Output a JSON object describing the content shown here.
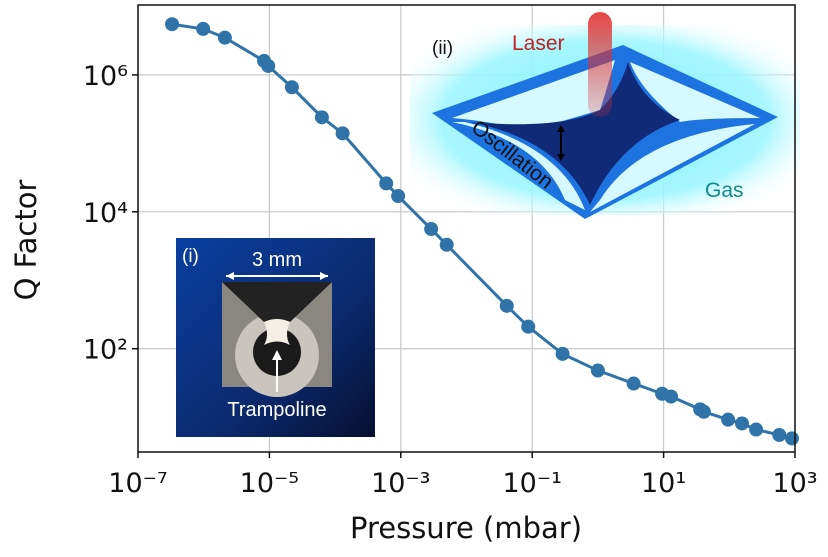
{
  "chart_data": {
    "type": "line",
    "xlabel": "Pressure (mbar)",
    "ylabel": "Q Factor",
    "xscale": "log",
    "yscale": "log",
    "grid": true,
    "xlim": [
      1e-07,
      1000
    ],
    "ylim": [
      3.1,
      10500000
    ],
    "xticks": [
      {
        "value": 1e-07,
        "label": "10⁻⁷"
      },
      {
        "value": 1e-05,
        "label": "10⁻⁵"
      },
      {
        "value": 0.001,
        "label": "10⁻³"
      },
      {
        "value": 0.1,
        "label": "10⁻¹"
      },
      {
        "value": 10,
        "label": "10¹"
      },
      {
        "value": 1000,
        "label": "10³"
      }
    ],
    "yticks": [
      {
        "value": 100,
        "label": "10²"
      },
      {
        "value": 10000,
        "label": "10⁴"
      },
      {
        "value": 1000000,
        "label": "10⁶"
      }
    ],
    "series": [
      {
        "color": "#2f73a8",
        "x": [
          3.3e-07,
          9.8e-07,
          2.1e-06,
          8.3e-06,
          9.6e-06,
          2.2e-05,
          6.3e-05,
          0.00013,
          0.0006,
          0.00091,
          0.0029,
          0.005,
          0.041,
          0.087,
          0.29,
          1.0,
          3.5,
          9.5,
          13,
          36,
          41,
          96,
          156,
          256,
          576,
          900
        ],
        "values": [
          5500000,
          4700000,
          3500000,
          1600000,
          1350000,
          660000,
          240000,
          140000,
          26000,
          17000,
          5600,
          3300,
          423,
          210,
          84,
          48,
          31,
          22,
          20,
          13,
          12,
          9.2,
          8.1,
          6.6,
          5.5,
          4.9
        ]
      }
    ],
    "annotations": [
      "(i)",
      "3 mm",
      "Trampoline",
      "(ii)",
      "Laser",
      "Oscillation",
      "Gas"
    ]
  }
}
